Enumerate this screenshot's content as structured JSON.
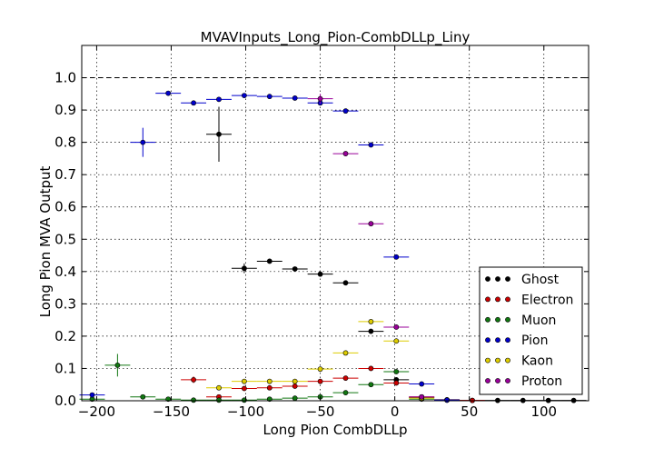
{
  "chart_data": {
    "type": "scatter",
    "title": "MVAVInputs_Long_Pion-CombDLLp_Liny",
    "xlabel": "Long Pion CombDLLp",
    "ylabel": "Long Pion MVA Output",
    "xlim": [
      -210,
      130
    ],
    "ylim": [
      0.0,
      1.1
    ],
    "xticks": [
      -200,
      -150,
      -100,
      -50,
      0,
      50,
      100
    ],
    "yticks": [
      0.0,
      0.1,
      0.2,
      0.3,
      0.4,
      0.5,
      0.6,
      0.7,
      0.8,
      0.9,
      1.0
    ],
    "grid": true,
    "reference_line": 1.0,
    "bin_half_width": 8.5,
    "legend_position": "lower-right",
    "series": [
      {
        "name": "Ghost",
        "color": "#000000",
        "points": [
          {
            "x": -118,
            "y": 0.825,
            "yerr": 0.085
          },
          {
            "x": -101,
            "y": 0.41,
            "yerr": 0.015
          },
          {
            "x": -84,
            "y": 0.432,
            "yerr": 0.005
          },
          {
            "x": -67,
            "y": 0.408,
            "yerr": 0.005
          },
          {
            "x": -50,
            "y": 0.392,
            "yerr": 0.005
          },
          {
            "x": -33,
            "y": 0.365,
            "yerr": 0.005
          },
          {
            "x": -16,
            "y": 0.215,
            "yerr": 0.005
          },
          {
            "x": 1,
            "y": 0.065,
            "yerr": 0.005
          },
          {
            "x": 18,
            "y": 0.01,
            "yerr": 0.003
          },
          {
            "x": 35,
            "y": 0.003,
            "yerr": 0.001
          },
          {
            "x": 52,
            "y": 0.001,
            "yerr": 0.001
          },
          {
            "x": 69,
            "y": 0.001,
            "yerr": 0.001
          },
          {
            "x": 86,
            "y": 0.001,
            "yerr": 0.001
          },
          {
            "x": 103,
            "y": 0.001,
            "yerr": 0.001
          },
          {
            "x": 120,
            "y": 0.001,
            "yerr": 0.001
          }
        ]
      },
      {
        "name": "Electron",
        "color": "#cc0000",
        "points": [
          {
            "x": -135,
            "y": 0.065,
            "yerr": 0.01
          },
          {
            "x": -118,
            "y": 0.012,
            "yerr": 0.003
          },
          {
            "x": -101,
            "y": 0.038,
            "yerr": 0.003
          },
          {
            "x": -84,
            "y": 0.04,
            "yerr": 0.003
          },
          {
            "x": -67,
            "y": 0.045,
            "yerr": 0.003
          },
          {
            "x": -50,
            "y": 0.06,
            "yerr": 0.003
          },
          {
            "x": -33,
            "y": 0.07,
            "yerr": 0.003
          },
          {
            "x": -16,
            "y": 0.1,
            "yerr": 0.003
          },
          {
            "x": 1,
            "y": 0.055,
            "yerr": 0.003
          },
          {
            "x": 18,
            "y": 0.012,
            "yerr": 0.002
          },
          {
            "x": 35,
            "y": 0.002,
            "yerr": 0.001
          },
          {
            "x": 52,
            "y": 0.001,
            "yerr": 0.001
          }
        ]
      },
      {
        "name": "Muon",
        "color": "#117711",
        "points": [
          {
            "x": -203,
            "y": 0.005,
            "yerr": 0.003
          },
          {
            "x": -186,
            "y": 0.11,
            "yerr": 0.035
          },
          {
            "x": -169,
            "y": 0.012,
            "yerr": 0.003
          },
          {
            "x": -152,
            "y": 0.005,
            "yerr": 0.002
          },
          {
            "x": -135,
            "y": 0.002,
            "yerr": 0.001
          },
          {
            "x": -118,
            "y": 0.002,
            "yerr": 0.001
          },
          {
            "x": -101,
            "y": 0.002,
            "yerr": 0.001
          },
          {
            "x": -84,
            "y": 0.005,
            "yerr": 0.001
          },
          {
            "x": -67,
            "y": 0.008,
            "yerr": 0.001
          },
          {
            "x": -50,
            "y": 0.012,
            "yerr": 0.001
          },
          {
            "x": -33,
            "y": 0.025,
            "yerr": 0.002
          },
          {
            "x": -16,
            "y": 0.05,
            "yerr": 0.002
          },
          {
            "x": 1,
            "y": 0.09,
            "yerr": 0.003
          },
          {
            "x": 18,
            "y": 0.005,
            "yerr": 0.001
          }
        ]
      },
      {
        "name": "Pion",
        "color": "#0000cc",
        "points": [
          {
            "x": -203,
            "y": 0.018,
            "yerr": 0.003
          },
          {
            "x": -169,
            "y": 0.8,
            "yerr": 0.045
          },
          {
            "x": -152,
            "y": 0.952,
            "yerr": 0.005
          },
          {
            "x": -135,
            "y": 0.922,
            "yerr": 0.005
          },
          {
            "x": -118,
            "y": 0.933,
            "yerr": 0.003
          },
          {
            "x": -101,
            "y": 0.945,
            "yerr": 0.003
          },
          {
            "x": -84,
            "y": 0.942,
            "yerr": 0.003
          },
          {
            "x": -67,
            "y": 0.937,
            "yerr": 0.003
          },
          {
            "x": -50,
            "y": 0.922,
            "yerr": 0.003
          },
          {
            "x": -33,
            "y": 0.897,
            "yerr": 0.003
          },
          {
            "x": -16,
            "y": 0.792,
            "yerr": 0.003
          },
          {
            "x": 1,
            "y": 0.445,
            "yerr": 0.003
          },
          {
            "x": 18,
            "y": 0.052,
            "yerr": 0.002
          },
          {
            "x": 35,
            "y": 0.002,
            "yerr": 0.001
          }
        ]
      },
      {
        "name": "Kaon",
        "color": "#ddcc00",
        "points": [
          {
            "x": -118,
            "y": 0.04,
            "yerr": 0.003
          },
          {
            "x": -101,
            "y": 0.06,
            "yerr": 0.003
          },
          {
            "x": -84,
            "y": 0.06,
            "yerr": 0.003
          },
          {
            "x": -67,
            "y": 0.06,
            "yerr": 0.003
          },
          {
            "x": -50,
            "y": 0.098,
            "yerr": 0.003
          },
          {
            "x": -33,
            "y": 0.148,
            "yerr": 0.003
          },
          {
            "x": -16,
            "y": 0.245,
            "yerr": 0.003
          },
          {
            "x": 1,
            "y": 0.185,
            "yerr": 0.003
          },
          {
            "x": 18,
            "y": 0.008,
            "yerr": 0.002
          }
        ]
      },
      {
        "name": "Proton",
        "color": "#990099",
        "points": [
          {
            "x": -50,
            "y": 0.935,
            "yerr": 0.015
          },
          {
            "x": -33,
            "y": 0.765,
            "yerr": 0.005
          },
          {
            "x": -16,
            "y": 0.548,
            "yerr": 0.003
          },
          {
            "x": 1,
            "y": 0.228,
            "yerr": 0.003
          },
          {
            "x": 18,
            "y": 0.012,
            "yerr": 0.002
          }
        ]
      }
    ]
  }
}
